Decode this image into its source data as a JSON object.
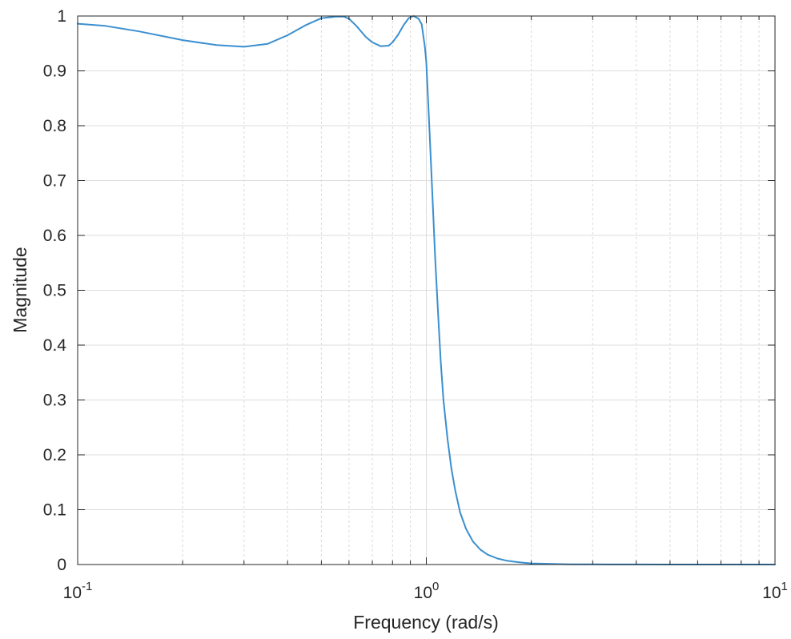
{
  "chart_data": {
    "type": "line",
    "xscale": "log",
    "xlabel": "Frequency (rad/s)",
    "ylabel": "Magnitude",
    "xlim": [
      0.1,
      10
    ],
    "ylim": [
      0,
      1
    ],
    "grid": true,
    "x_ticks": [
      {
        "value": 0.1,
        "base": "10",
        "exp": "-1"
      },
      {
        "value": 1,
        "base": "10",
        "exp": "0"
      },
      {
        "value": 10,
        "base": "10",
        "exp": "1"
      }
    ],
    "y_ticks": [
      {
        "value": 0,
        "label": "0"
      },
      {
        "value": 0.1,
        "label": "0.1"
      },
      {
        "value": 0.2,
        "label": "0.2"
      },
      {
        "value": 0.3,
        "label": "0.3"
      },
      {
        "value": 0.4,
        "label": "0.4"
      },
      {
        "value": 0.5,
        "label": "0.5"
      },
      {
        "value": 0.6,
        "label": "0.6"
      },
      {
        "value": 0.7,
        "label": "0.7"
      },
      {
        "value": 0.8,
        "label": "0.8"
      },
      {
        "value": 0.9,
        "label": "0.9"
      },
      {
        "value": 1,
        "label": "1"
      }
    ],
    "series": [
      {
        "color": "#3a8fd0",
        "x": [
          0.1,
          0.12,
          0.15,
          0.2,
          0.25,
          0.3,
          0.35,
          0.4,
          0.45,
          0.5,
          0.55,
          0.58,
          0.6,
          0.63,
          0.67,
          0.7,
          0.74,
          0.78,
          0.8,
          0.83,
          0.86,
          0.89,
          0.92,
          0.95,
          0.97,
          0.99,
          1.0,
          1.02,
          1.04,
          1.06,
          1.08,
          1.1,
          1.12,
          1.15,
          1.18,
          1.21,
          1.25,
          1.3,
          1.36,
          1.43,
          1.5,
          1.6,
          1.7,
          1.85,
          2.0,
          2.3,
          2.6,
          3.0,
          4.0,
          5.0,
          7.0,
          10.0
        ],
        "y": [
          0.986,
          0.982,
          0.972,
          0.956,
          0.947,
          0.944,
          0.949,
          0.965,
          0.983,
          0.996,
          0.999,
          0.999,
          0.995,
          0.982,
          0.962,
          0.952,
          0.945,
          0.946,
          0.952,
          0.966,
          0.983,
          0.996,
          1.0,
          0.995,
          0.985,
          0.945,
          0.915,
          0.8,
          0.68,
          0.56,
          0.46,
          0.37,
          0.3,
          0.23,
          0.175,
          0.135,
          0.095,
          0.065,
          0.042,
          0.027,
          0.018,
          0.011,
          0.007,
          0.004,
          0.002,
          0.001,
          0.0005,
          0.0003,
          0.0001,
          0.0,
          0.0,
          0.0
        ]
      }
    ]
  }
}
